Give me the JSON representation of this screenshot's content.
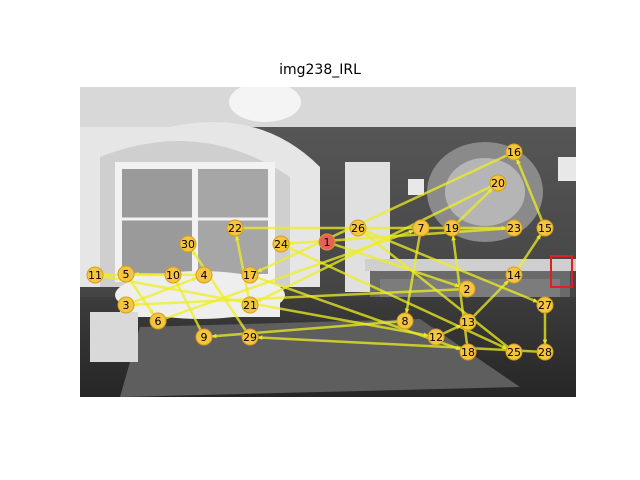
{
  "figure": {
    "title": "img238_IRL"
  },
  "colors": {
    "path": "#eeee22",
    "fixation_fill": "#f5c542",
    "fixation_stroke": "#d4a017",
    "first_fixation": "#e8605a",
    "target_box": "#e02020"
  },
  "scanpath": {
    "fixations": [
      {
        "label": "1"
      },
      {
        "label": "2"
      },
      {
        "label": "3"
      },
      {
        "label": "4"
      },
      {
        "label": "5"
      },
      {
        "label": "6"
      },
      {
        "label": "7"
      },
      {
        "label": "8"
      },
      {
        "label": "9"
      },
      {
        "label": "10"
      },
      {
        "label": "11"
      },
      {
        "label": "12"
      },
      {
        "label": "13"
      },
      {
        "label": "14"
      },
      {
        "label": "15"
      },
      {
        "label": "16"
      },
      {
        "label": "17"
      },
      {
        "label": "18"
      },
      {
        "label": "19"
      },
      {
        "label": "20"
      },
      {
        "label": "21"
      },
      {
        "label": "22"
      },
      {
        "label": "23"
      },
      {
        "label": "24"
      },
      {
        "label": "25"
      },
      {
        "label": "26"
      },
      {
        "label": "27"
      },
      {
        "label": "28"
      },
      {
        "label": "29"
      },
      {
        "label": "30"
      }
    ]
  }
}
